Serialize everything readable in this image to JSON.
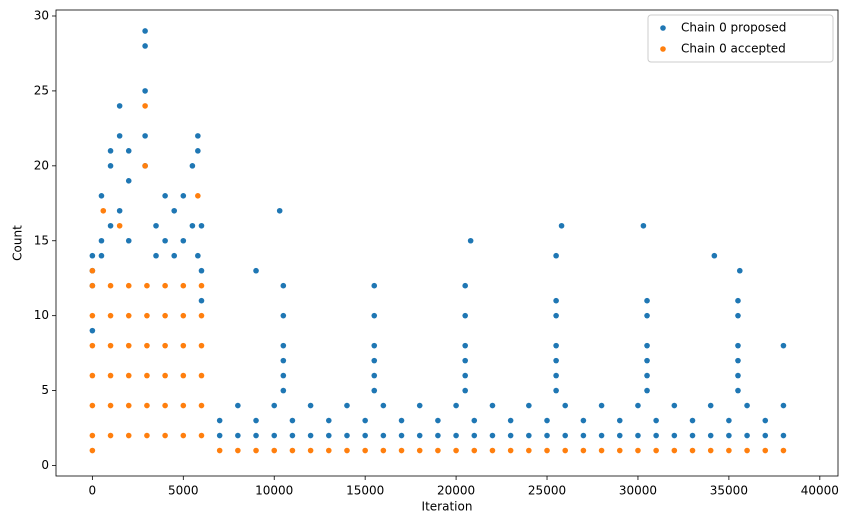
{
  "chart_data": {
    "type": "scatter",
    "xlabel": "Iteration",
    "ylabel": "Count",
    "xlim": [
      -2000,
      41000
    ],
    "ylim": [
      -0.7,
      30.4
    ],
    "xticks": [
      0,
      5000,
      10000,
      15000,
      20000,
      25000,
      30000,
      35000,
      40000
    ],
    "yticks": [
      0,
      5,
      10,
      15,
      20,
      25,
      30
    ],
    "grid": false,
    "legend": "upper right",
    "series": [
      {
        "name": "Chain 0 proposed",
        "color": "#1f77b4",
        "x": [
          0,
          0,
          0,
          0,
          500,
          500,
          500,
          1000,
          1000,
          1000,
          1500,
          1500,
          1500,
          2000,
          2000,
          2000,
          2900,
          2900,
          2900,
          2900,
          2900,
          3500,
          3500,
          4000,
          4000,
          4500,
          4500,
          5000,
          5000,
          5500,
          5500,
          5800,
          5800,
          5800,
          6000,
          6000,
          6000,
          7000,
          8000,
          9000,
          10000,
          11000,
          12000,
          13000,
          14000,
          15000,
          16000,
          17000,
          18000,
          19000,
          20000,
          21000,
          22000,
          23000,
          24000,
          25000,
          26000,
          27000,
          28000,
          29000,
          30000,
          31000,
          32000,
          33000,
          34000,
          35000,
          36000,
          37000,
          38000,
          7000,
          9000,
          11000,
          13000,
          15000,
          17000,
          19000,
          21000,
          23000,
          25000,
          27000,
          29000,
          31000,
          33000,
          35000,
          37000,
          8000,
          10000,
          12000,
          14000,
          16000,
          18000,
          20000,
          22000,
          24000,
          26000,
          28000,
          30000,
          32000,
          34000,
          36000,
          38000,
          10500,
          10500,
          10500,
          10500,
          10500,
          10500,
          10300,
          9000,
          15500,
          15500,
          15500,
          15500,
          15500,
          15500,
          20500,
          20500,
          20500,
          20500,
          20500,
          20500,
          20800,
          25500,
          25500,
          25500,
          25500,
          25500,
          25500,
          25500,
          25800,
          30500,
          30500,
          30500,
          30500,
          30500,
          30500,
          30300,
          35500,
          35500,
          35500,
          35500,
          35500,
          35500,
          35600,
          34200,
          38000
        ],
        "values": [
          9,
          12,
          13,
          14,
          14,
          15,
          18,
          16,
          20,
          21,
          17,
          22,
          24,
          15,
          19,
          21,
          20,
          22,
          25,
          28,
          29,
          14,
          16,
          15,
          18,
          14,
          17,
          15,
          18,
          16,
          20,
          14,
          21,
          22,
          11,
          13,
          16,
          2,
          2,
          2,
          2,
          2,
          2,
          2,
          2,
          2,
          2,
          2,
          2,
          2,
          2,
          2,
          2,
          2,
          2,
          2,
          2,
          2,
          2,
          2,
          2,
          2,
          2,
          2,
          2,
          2,
          2,
          2,
          2,
          3,
          3,
          3,
          3,
          3,
          3,
          3,
          3,
          3,
          3,
          3,
          3,
          3,
          3,
          3,
          3,
          4,
          4,
          4,
          4,
          4,
          4,
          4,
          4,
          4,
          4,
          4,
          4,
          4,
          4,
          4,
          4,
          5,
          6,
          7,
          8,
          10,
          12,
          17,
          13,
          5,
          6,
          7,
          8,
          10,
          12,
          5,
          6,
          7,
          8,
          10,
          12,
          15,
          5,
          6,
          7,
          8,
          10,
          11,
          14,
          16,
          5,
          6,
          7,
          8,
          10,
          11,
          16,
          5,
          6,
          7,
          8,
          10,
          11,
          13,
          14,
          8
        ]
      },
      {
        "name": "Chain 0 accepted",
        "color": "#ff7f0e",
        "x": [
          0,
          0,
          0,
          0,
          0,
          0,
          1000,
          1000,
          1000,
          1000,
          1000,
          1000,
          2000,
          2000,
          2000,
          2000,
          2000,
          2000,
          3000,
          3000,
          3000,
          3000,
          3000,
          3000,
          4000,
          4000,
          4000,
          4000,
          4000,
          4000,
          5000,
          5000,
          5000,
          5000,
          5000,
          5000,
          6000,
          6000,
          6000,
          6000,
          6000,
          6000,
          0,
          0,
          600,
          1500,
          2900,
          2900,
          5800,
          7000,
          8000,
          9000,
          10000,
          11000,
          12000,
          13000,
          14000,
          15000,
          16000,
          17000,
          18000,
          19000,
          20000,
          21000,
          22000,
          23000,
          24000,
          25000,
          26000,
          27000,
          28000,
          29000,
          30000,
          31000,
          32000,
          33000,
          34000,
          35000,
          36000,
          37000,
          38000
        ],
        "values": [
          2,
          4,
          6,
          8,
          10,
          12,
          2,
          4,
          6,
          8,
          10,
          12,
          2,
          4,
          6,
          8,
          10,
          12,
          2,
          4,
          6,
          8,
          10,
          12,
          2,
          4,
          6,
          8,
          10,
          12,
          2,
          4,
          6,
          8,
          10,
          12,
          2,
          4,
          6,
          8,
          10,
          12,
          1,
          13,
          17,
          16,
          20,
          24,
          18,
          1,
          1,
          1,
          1,
          1,
          1,
          1,
          1,
          1,
          1,
          1,
          1,
          1,
          1,
          1,
          1,
          1,
          1,
          1,
          1,
          1,
          1,
          1,
          1,
          1,
          1,
          1,
          1,
          1,
          1,
          1,
          1
        ]
      }
    ]
  }
}
